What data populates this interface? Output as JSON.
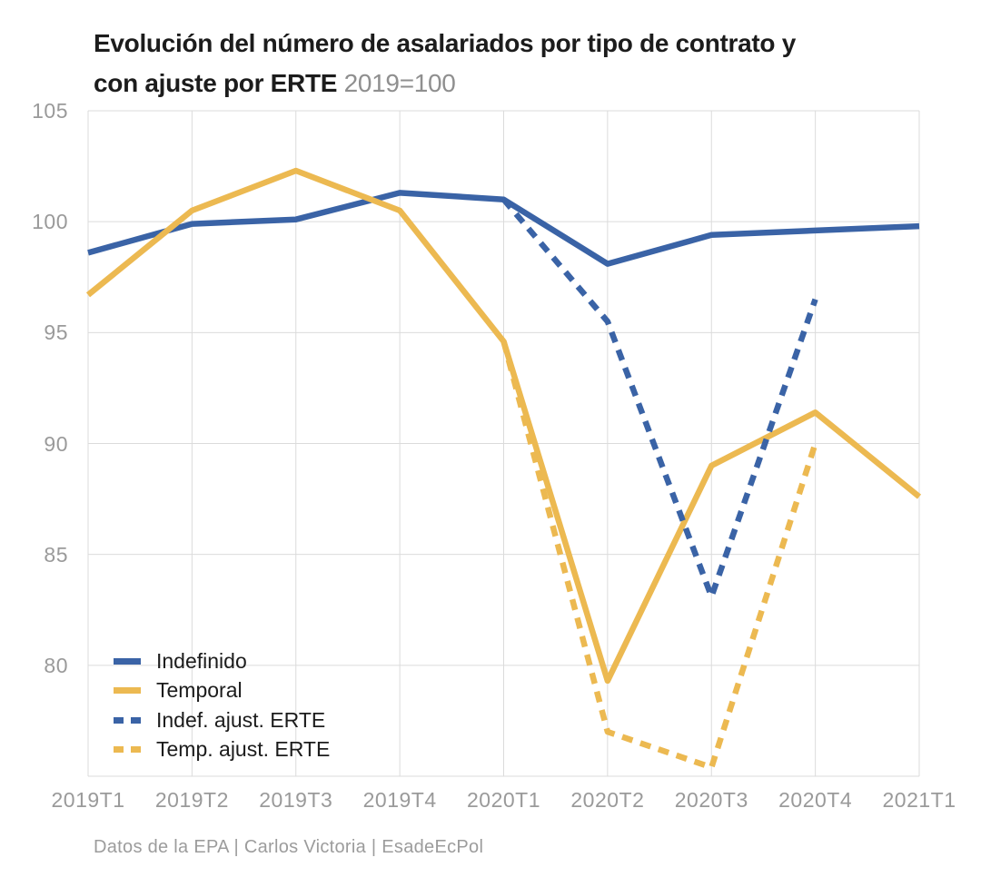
{
  "header": {
    "title_line1": "Evolución del número de asalariados por tipo de contrato y",
    "title_line2": "con ajuste por ERTE",
    "subtitle": "2019=100"
  },
  "footer": {
    "credit": "Datos de la EPA | Carlos Victoria | EsadeEcPol"
  },
  "colors": {
    "blue": "#3A63A6",
    "yellow": "#ECB951",
    "grid": "#DBDBDB",
    "tick_text": "#9a9a9a",
    "title_text": "#1c1c1c",
    "muted_text": "#8f8f8f"
  },
  "chart_data": {
    "type": "line",
    "title": "Evolución del número de asalariados por tipo de contrato y con ajuste por ERTE",
    "subtitle": "2019=100",
    "xlabel": "",
    "ylabel": "",
    "categories": [
      "2019T1",
      "2019T2",
      "2019T3",
      "2019T4",
      "2020T1",
      "2020T2",
      "2020T3",
      "2020T4",
      "2021T1"
    ],
    "series": [
      {
        "name": "Indefinido",
        "color": "#3A63A6",
        "dashed": false,
        "values": [
          98.6,
          99.9,
          100.1,
          101.3,
          101.0,
          98.1,
          99.4,
          99.6,
          99.8
        ]
      },
      {
        "name": "Temporal",
        "color": "#ECB951",
        "dashed": false,
        "values": [
          96.7,
          100.5,
          102.3,
          100.5,
          94.6,
          79.3,
          89.0,
          91.4,
          87.6
        ]
      },
      {
        "name": "Indef. ajust. ERTE",
        "color": "#3A63A6",
        "dashed": true,
        "values": [
          null,
          null,
          null,
          null,
          101.0,
          95.5,
          83.1,
          96.5,
          null
        ]
      },
      {
        "name": "Temp. ajust. ERTE",
        "color": "#ECB951",
        "dashed": true,
        "values": [
          null,
          null,
          null,
          null,
          94.6,
          77.0,
          75.4,
          90.0,
          null
        ]
      }
    ],
    "ylim": [
      75,
      105
    ],
    "yticks": [
      80,
      85,
      90,
      95,
      100,
      105
    ],
    "grid": true,
    "legend_position": "inside-bottom-left"
  }
}
